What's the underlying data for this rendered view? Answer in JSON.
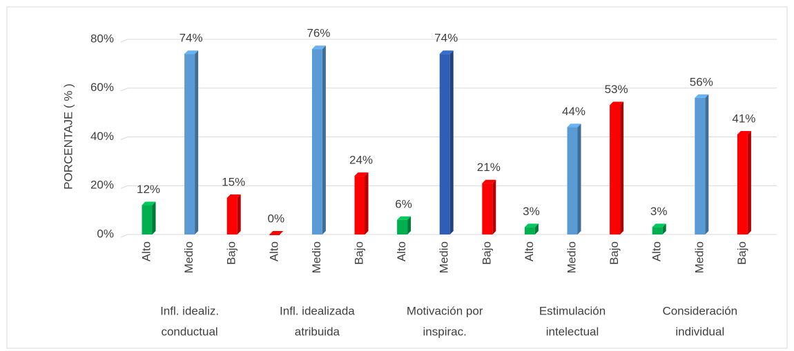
{
  "chart_data": {
    "type": "bar3d",
    "ylabel": "PORCENTAJE ( % )",
    "ylim": [
      0,
      80
    ],
    "yticks": [
      {
        "value": 0,
        "label": "0%"
      },
      {
        "value": 20,
        "label": "20%"
      },
      {
        "value": 40,
        "label": "40%"
      },
      {
        "value": 60,
        "label": "60%"
      },
      {
        "value": 80,
        "label": "80%"
      }
    ],
    "grid": true,
    "groups": [
      {
        "name": [
          "Infl. idealiz.",
          "conductual"
        ],
        "categories": [
          "Alto",
          "Medio",
          "Bajo"
        ],
        "values": [
          12,
          74,
          15
        ],
        "value_labels": [
          "12%",
          "74%",
          "15%"
        ],
        "colors": [
          "#00b050",
          "#5b9bd5",
          "#ff0000"
        ]
      },
      {
        "name": [
          "Infl. idealizada",
          "atribuida"
        ],
        "categories": [
          "Alto",
          "Medio",
          "Bajo"
        ],
        "values": [
          0,
          76,
          24
        ],
        "value_labels": [
          "0%",
          "76%",
          "24%"
        ],
        "colors": [
          "#ff0000",
          "#5b9bd5",
          "#ff0000"
        ]
      },
      {
        "name": [
          "Motivación por",
          "inspirac."
        ],
        "categories": [
          "Alto",
          "Medio",
          "Bajo"
        ],
        "values": [
          6,
          74,
          21
        ],
        "value_labels": [
          "6%",
          "74%",
          "21%"
        ],
        "colors": [
          "#00b050",
          "#2e5fb5",
          "#ff0000"
        ]
      },
      {
        "name": [
          "Estimulación",
          "intelectual"
        ],
        "categories": [
          "Alto",
          "Medio",
          "Bajo"
        ],
        "values": [
          3,
          44,
          53
        ],
        "value_labels": [
          "3%",
          "44%",
          "53%"
        ],
        "colors": [
          "#00b050",
          "#5b9bd5",
          "#ff0000"
        ]
      },
      {
        "name": [
          "Consideración",
          "individual"
        ],
        "categories": [
          "Alto",
          "Medio",
          "Bajo"
        ],
        "values": [
          3,
          56,
          41
        ],
        "value_labels": [
          "3%",
          "56%",
          "41%"
        ],
        "colors": [
          "#00b050",
          "#5b9bd5",
          "#ff0000"
        ]
      }
    ]
  }
}
